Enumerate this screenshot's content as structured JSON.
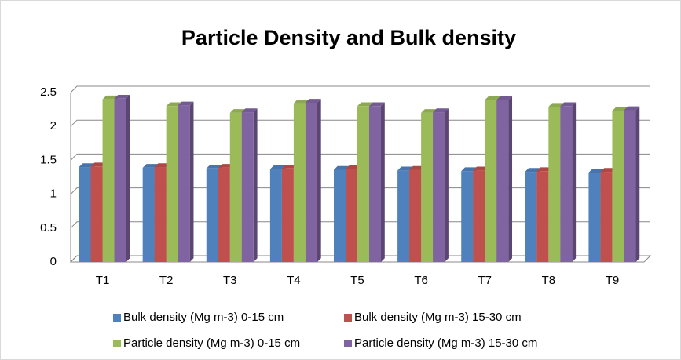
{
  "chart_data": {
    "type": "bar",
    "title": "Particle Density and Bulk density",
    "categories": [
      "T1",
      "T2",
      "T3",
      "T4",
      "T5",
      "T6",
      "T7",
      "T8",
      "T9"
    ],
    "series": [
      {
        "name": "Bulk density (Mg m-3) 0-15 cm",
        "color": "#4f81bd",
        "values": [
          1.4,
          1.39,
          1.38,
          1.37,
          1.36,
          1.35,
          1.34,
          1.33,
          1.32
        ]
      },
      {
        "name": "Bulk density (Mg m-3) 15-30 cm",
        "color": "#c0504d",
        "values": [
          1.41,
          1.4,
          1.39,
          1.38,
          1.37,
          1.36,
          1.35,
          1.34,
          1.33
        ]
      },
      {
        "name": "Particle density (Mg m-3) 0-15 cm",
        "color": "#9bbb59",
        "values": [
          2.4,
          2.3,
          2.2,
          2.34,
          2.3,
          2.2,
          2.39,
          2.29,
          2.23
        ]
      },
      {
        "name": "Particle density (Mg m-3) 15-30 cm",
        "color": "#8064a2",
        "values": [
          2.41,
          2.31,
          2.21,
          2.35,
          2.3,
          2.21,
          2.39,
          2.3,
          2.24
        ]
      }
    ],
    "ylim": [
      0,
      2.5
    ],
    "yticks": [
      0,
      0.5,
      1,
      1.5,
      2,
      2.5
    ],
    "grid": true
  }
}
